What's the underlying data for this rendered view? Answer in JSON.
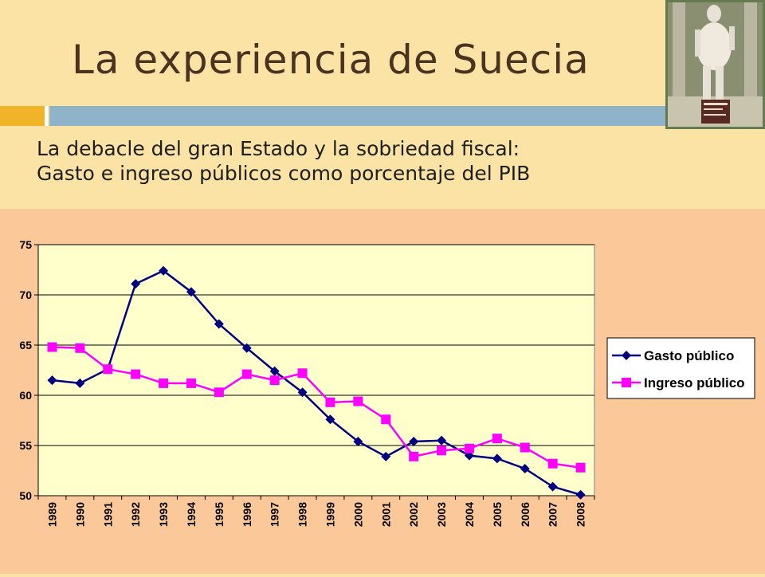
{
  "slide": {
    "title": "La experiencia de Suecia",
    "subtitle_line1": "La debacle del gran Estado y la sobriedad fiscal:",
    "subtitle_line2": "Gasto e ingreso públicos como porcentaje del PIB"
  },
  "colors": {
    "background": "#fbe3a6",
    "chart_area": "#fbc89a",
    "plot_area": "#ffffcc",
    "accent_orange": "#f0b428",
    "accent_blue": "#8fb4c9",
    "title_color": "#4a3320"
  },
  "chart_data": {
    "type": "line",
    "x": [
      "1989",
      "1990",
      "1991",
      "1992",
      "1993",
      "1994",
      "1995",
      "1996",
      "1997",
      "1998",
      "1999",
      "2000",
      "2001",
      "2002",
      "2003",
      "2004",
      "2005",
      "2006",
      "2007",
      "2008"
    ],
    "ylim": [
      50,
      75
    ],
    "yticks": [
      50,
      55,
      60,
      65,
      70,
      75
    ],
    "grid": true,
    "legend_position": "right",
    "series": [
      {
        "name": "Gasto público",
        "color": "#000080",
        "marker": "diamond",
        "values": [
          61.5,
          61.2,
          62.6,
          71.1,
          72.4,
          70.3,
          67.1,
          64.7,
          62.4,
          60.3,
          57.6,
          55.4,
          53.9,
          55.4,
          55.5,
          54.0,
          53.7,
          52.7,
          50.9,
          50.1
        ]
      },
      {
        "name": "Ingreso público",
        "color": "#ff00ff",
        "marker": "square",
        "values": [
          64.8,
          64.7,
          62.6,
          62.1,
          61.2,
          61.2,
          60.3,
          62.1,
          61.5,
          62.2,
          59.3,
          59.4,
          57.6,
          53.9,
          54.5,
          54.7,
          55.7,
          54.8,
          53.2,
          52.8
        ]
      }
    ]
  }
}
